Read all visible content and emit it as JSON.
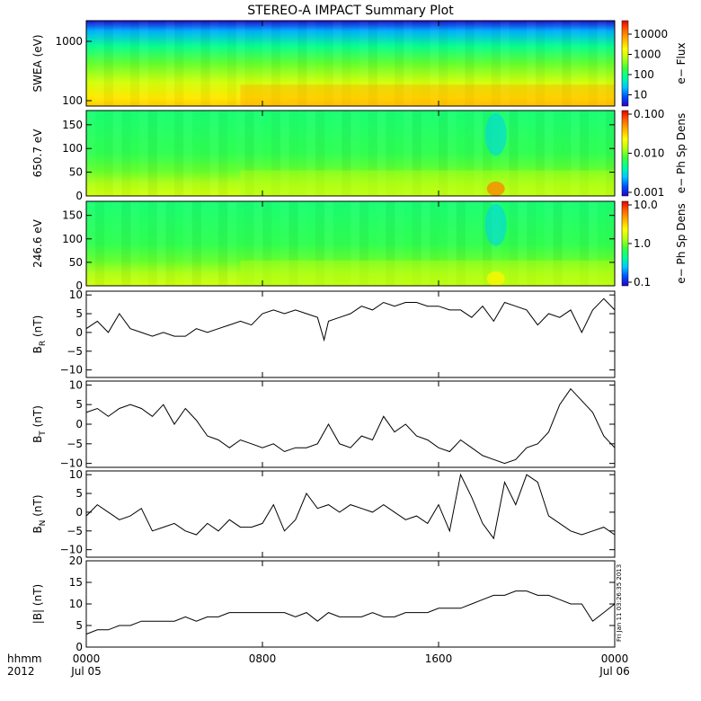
{
  "title": "STEREO-A IMPACT Summary Plot",
  "stamp": "Fri Jan 11 03:26:35 2013",
  "time_axis": {
    "row1_label": "hhmm",
    "row2_label": "2012",
    "ticks": [
      {
        "hours": 0,
        "label": "0000",
        "sublabel": "Jul 05"
      },
      {
        "hours": 8,
        "label": "0800",
        "sublabel": ""
      },
      {
        "hours": 16,
        "label": "1600",
        "sublabel": ""
      },
      {
        "hours": 24,
        "label": "0000",
        "sublabel": "Jul 06"
      }
    ],
    "range_hours": [
      0,
      24
    ]
  },
  "colors": {
    "line": "#000000",
    "colormap": [
      "#2800c8",
      "#0050ff",
      "#00c8ff",
      "#00ff9c",
      "#3cff3c",
      "#b4ff14",
      "#ffff00",
      "#ffb400",
      "#ff6400",
      "#e60000"
    ]
  },
  "chart_data": [
    {
      "type": "heatmap",
      "ylabel": "SWEA (eV)",
      "y_scale": "log",
      "yticks": [
        "1000",
        "100"
      ],
      "colorbar": {
        "label": "e−  Flux",
        "scale": "log",
        "ticks": [
          "10000",
          "1000",
          "100",
          "10"
        ]
      }
    },
    {
      "type": "heatmap",
      "ylabel": "650.7 eV",
      "yticks": [
        "150",
        "100",
        "50",
        "0"
      ],
      "colorbar": {
        "label": "e−  Ph Sp Dens",
        "scale": "log",
        "ticks": [
          "0.100",
          "0.010",
          "0.001"
        ]
      }
    },
    {
      "type": "heatmap",
      "ylabel": "246.6 eV",
      "yticks": [
        "150",
        "100",
        "50",
        "0"
      ],
      "colorbar": {
        "label": "e−  Ph Sp Dens",
        "scale": "log",
        "ticks": [
          "10.0",
          "1.0",
          "0.1"
        ]
      }
    },
    {
      "type": "line",
      "ylabel": "B",
      "ylabel_sub": "R",
      "ylabel_unit": "(nT)",
      "yticks": [
        "10",
        "5",
        "0",
        "−5",
        "−10"
      ],
      "ylim": [
        -12,
        11
      ],
      "x": [
        0,
        0.5,
        1,
        1.5,
        2,
        2.5,
        3,
        3.5,
        4,
        4.5,
        5,
        5.5,
        6,
        6.5,
        7,
        7.5,
        8,
        8.5,
        9,
        9.5,
        10,
        10.5,
        10.8,
        11,
        11.5,
        12,
        12.5,
        13,
        13.5,
        14,
        14.5,
        15,
        15.5,
        16,
        16.5,
        17,
        17.5,
        18,
        18.5,
        19,
        19.5,
        20,
        20.5,
        21,
        21.5,
        22,
        22.5,
        23,
        23.5,
        24
      ],
      "y": [
        1,
        3,
        0,
        5,
        1,
        0,
        -1,
        0,
        -1,
        -1,
        1,
        0,
        1,
        2,
        3,
        2,
        5,
        6,
        5,
        6,
        5,
        4,
        -2,
        3,
        4,
        5,
        7,
        6,
        8,
        7,
        8,
        8,
        7,
        7,
        6,
        6,
        4,
        7,
        3,
        8,
        7,
        6,
        2,
        5,
        4,
        6,
        0,
        6,
        9,
        6
      ]
    },
    {
      "type": "line",
      "ylabel": "B",
      "ylabel_sub": "T",
      "ylabel_unit": "(nT)",
      "yticks": [
        "10",
        "5",
        "0",
        "−5",
        "−10"
      ],
      "ylim": [
        -11,
        11
      ],
      "x": [
        0,
        0.5,
        1,
        1.5,
        2,
        2.5,
        3,
        3.5,
        4,
        4.5,
        5,
        5.5,
        6,
        6.5,
        7,
        7.5,
        8,
        8.5,
        9,
        9.5,
        10,
        10.5,
        11,
        11.5,
        12,
        12.5,
        13,
        13.5,
        14,
        14.5,
        15,
        15.5,
        16,
        16.5,
        17,
        17.5,
        18,
        18.5,
        19,
        19.5,
        20,
        20.5,
        21,
        21.5,
        22,
        22.5,
        23,
        23.5,
        24
      ],
      "y": [
        3,
        4,
        2,
        4,
        5,
        4,
        2,
        5,
        0,
        4,
        1,
        -3,
        -4,
        -6,
        -4,
        -5,
        -6,
        -5,
        -7,
        -6,
        -6,
        -5,
        0,
        -5,
        -6,
        -3,
        -4,
        2,
        -2,
        0,
        -3,
        -4,
        -6,
        -7,
        -4,
        -6,
        -8,
        -9,
        -10,
        -9,
        -6,
        -5,
        -2,
        5,
        9,
        6,
        3,
        -3,
        -6
      ]
    },
    {
      "type": "line",
      "ylabel": "B",
      "ylabel_sub": "N",
      "ylabel_unit": "(nT)",
      "yticks": [
        "10",
        "5",
        "0",
        "−5",
        "−10"
      ],
      "ylim": [
        -12,
        11
      ],
      "x": [
        0,
        0.5,
        1,
        1.5,
        2,
        2.5,
        3,
        3.5,
        4,
        4.5,
        5,
        5.5,
        6,
        6.5,
        7,
        7.5,
        8,
        8.5,
        9,
        9.5,
        10,
        10.5,
        11,
        11.5,
        12,
        12.5,
        13,
        13.5,
        14,
        14.5,
        15,
        15.5,
        16,
        16.5,
        17,
        17.5,
        18,
        18.5,
        19,
        19.5,
        20,
        20.5,
        21,
        21.5,
        22,
        22.5,
        23,
        23.5,
        24
      ],
      "y": [
        -1,
        2,
        0,
        -2,
        -1,
        1,
        -5,
        -4,
        -3,
        -5,
        -6,
        -3,
        -5,
        -2,
        -4,
        -4,
        -3,
        2,
        -5,
        -2,
        5,
        1,
        2,
        0,
        2,
        1,
        0,
        2,
        0,
        -2,
        -1,
        -3,
        2,
        -5,
        10,
        4,
        -3,
        -7,
        8,
        2,
        10,
        8,
        -1,
        -3,
        -5,
        -6,
        -5,
        -4,
        -6
      ]
    },
    {
      "type": "line",
      "ylabel": "|B| (nT)",
      "yticks": [
        "20",
        "15",
        "10",
        "5",
        "0"
      ],
      "ylim": [
        0,
        20
      ],
      "x": [
        0,
        0.5,
        1,
        1.5,
        2,
        2.5,
        3,
        3.5,
        4,
        4.5,
        5,
        5.5,
        6,
        6.5,
        7,
        7.5,
        8,
        8.5,
        9,
        9.5,
        10,
        10.5,
        11,
        11.5,
        12,
        12.5,
        13,
        13.5,
        14,
        14.5,
        15,
        15.5,
        16,
        16.5,
        17,
        17.5,
        18,
        18.5,
        19,
        19.5,
        20,
        20.5,
        21,
        21.5,
        22,
        22.5,
        23,
        23.5,
        24
      ],
      "y": [
        3,
        4,
        4,
        5,
        5,
        6,
        6,
        6,
        6,
        7,
        6,
        7,
        7,
        8,
        8,
        8,
        8,
        8,
        8,
        7,
        8,
        6,
        8,
        7,
        7,
        7,
        8,
        7,
        7,
        8,
        8,
        8,
        9,
        9,
        9,
        10,
        11,
        12,
        12,
        13,
        13,
        12,
        12,
        11,
        10,
        10,
        6,
        8,
        10
      ]
    }
  ]
}
